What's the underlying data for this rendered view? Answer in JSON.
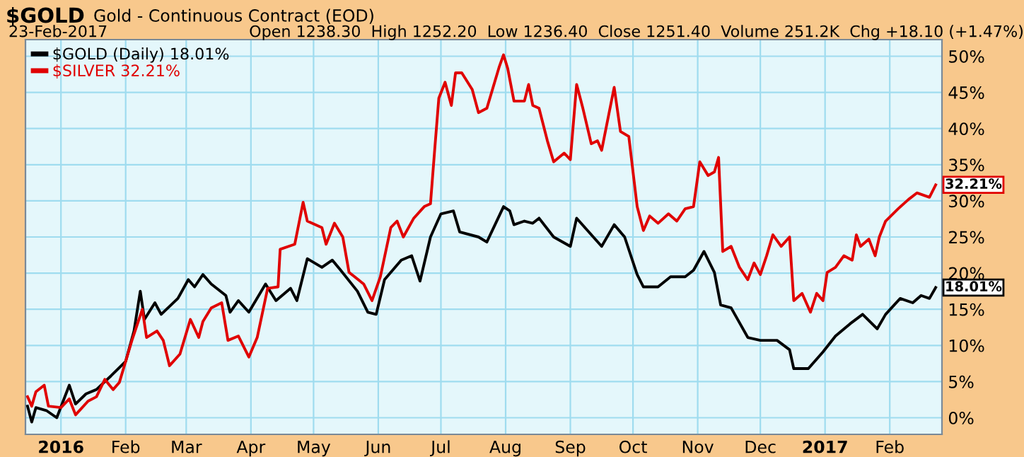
{
  "chart_data": {
    "type": "line",
    "title": "$GOLD",
    "subtitle": "Gold - Continuous Contract (EOD)",
    "annotations": [
      "23-Feb-2017",
      "Open 1238.30  High 1252.20  Low 1236.40  Close 1251.40  Volume 251.2K  Chg +18.10 (+1.47%)",
      {
        "text": "32.21%",
        "x": "2017-02-23",
        "y": 32.21
      },
      {
        "text": "18.01%",
        "x": "2017-02-23",
        "y": 18.01
      }
    ],
    "series": [
      {
        "name": "$GOLD (Daily) 18.01%",
        "color": "#000000",
        "x": [
          "2015-12-16",
          "2015-12-18",
          "2015-12-20",
          "2015-12-25",
          "2015-12-30",
          "2016-01-05",
          "2016-01-08",
          "2016-01-13",
          "2016-01-18",
          "2016-01-25",
          "2016-02-01",
          "2016-02-05",
          "2016-02-08",
          "2016-02-10",
          "2016-02-15",
          "2016-02-18",
          "2016-02-26",
          "2016-03-02",
          "2016-03-05",
          "2016-03-09",
          "2016-03-13",
          "2016-03-20",
          "2016-03-22",
          "2016-03-26",
          "2016-03-31",
          "2016-04-08",
          "2016-04-13",
          "2016-04-20",
          "2016-04-23",
          "2016-04-28",
          "2016-05-05",
          "2016-05-10",
          "2016-05-14",
          "2016-05-22",
          "2016-05-27",
          "2016-05-31",
          "2016-06-04",
          "2016-06-12",
          "2016-06-17",
          "2016-06-21",
          "2016-06-26",
          "2016-07-01",
          "2016-07-07",
          "2016-07-10",
          "2016-07-19",
          "2016-07-23",
          "2016-07-31",
          "2016-08-03",
          "2016-08-05",
          "2016-08-10",
          "2016-08-14",
          "2016-08-17",
          "2016-08-24",
          "2016-09-01",
          "2016-09-04",
          "2016-09-12",
          "2016-09-16",
          "2016-09-22",
          "2016-09-27",
          "2016-10-03",
          "2016-10-06",
          "2016-10-13",
          "2016-10-19",
          "2016-10-26",
          "2016-10-30",
          "2016-11-04",
          "2016-11-09",
          "2016-11-12",
          "2016-11-17",
          "2016-11-25",
          "2016-12-01",
          "2016-12-09",
          "2016-12-15",
          "2016-12-17",
          "2016-12-24",
          "2016-12-31",
          "2017-01-06",
          "2017-01-13",
          "2017-01-19",
          "2017-01-26",
          "2017-01-30",
          "2017-02-06",
          "2017-02-12",
          "2017-02-16",
          "2017-02-20",
          "2017-02-23"
        ],
        "values": [
          1.6,
          -0.6,
          1.4,
          1,
          0,
          4.5,
          1.9,
          3.3,
          3.9,
          5.8,
          7.8,
          12,
          17.5,
          13.6,
          15.9,
          14.3,
          16.5,
          19.1,
          18.1,
          19.8,
          18.5,
          16.9,
          14.6,
          16.2,
          14.6,
          18.5,
          16.2,
          17.9,
          16.2,
          22,
          20.8,
          21.8,
          20.4,
          17.5,
          14.6,
          14.3,
          19.1,
          21.8,
          22.4,
          18.9,
          25,
          28.2,
          28.6,
          25.7,
          25,
          24.3,
          29.2,
          28.6,
          26.7,
          27.2,
          26.9,
          27.6,
          25,
          23.7,
          27.6,
          25,
          23.7,
          26.7,
          25,
          19.8,
          18.1,
          18.1,
          19.5,
          19.5,
          20.4,
          23,
          20.1,
          15.6,
          15.2,
          11.1,
          10.7,
          10.7,
          9.4,
          6.8,
          6.8,
          9.1,
          11.3,
          13,
          14.3,
          12.3,
          14.3,
          16.5,
          15.9,
          16.9,
          16.5,
          18.01
        ]
      },
      {
        "name": "$SILVER 32.21%",
        "color": "#e00000",
        "x": [
          "2015-12-16",
          "2015-12-18",
          "2015-12-20",
          "2015-12-24",
          "2015-12-26",
          "2016-01-01",
          "2016-01-05",
          "2016-01-08",
          "2016-01-14",
          "2016-01-18",
          "2016-01-22",
          "2016-01-26",
          "2016-01-29",
          "2016-02-04",
          "2016-02-09",
          "2016-02-11",
          "2016-02-16",
          "2016-02-19",
          "2016-02-22",
          "2016-02-27",
          "2016-03-03",
          "2016-03-07",
          "2016-03-09",
          "2016-03-13",
          "2016-03-18",
          "2016-03-21",
          "2016-03-26",
          "2016-03-31",
          "2016-04-04",
          "2016-04-09",
          "2016-04-14",
          "2016-04-15",
          "2016-04-22",
          "2016-04-26",
          "2016-04-28",
          "2016-05-05",
          "2016-05-07",
          "2016-05-11",
          "2016-05-15",
          "2016-05-18",
          "2016-05-25",
          "2016-05-29",
          "2016-06-02",
          "2016-06-07",
          "2016-06-10",
          "2016-06-13",
          "2016-06-18",
          "2016-06-23",
          "2016-06-26",
          "2016-06-28",
          "2016-06-30",
          "2016-07-03",
          "2016-07-06",
          "2016-07-08",
          "2016-07-11",
          "2016-07-16",
          "2016-07-19",
          "2016-07-23",
          "2016-07-29",
          "2016-07-31",
          "2016-08-02",
          "2016-08-05",
          "2016-08-10",
          "2016-08-12",
          "2016-08-14",
          "2016-08-17",
          "2016-08-21",
          "2016-08-24",
          "2016-08-29",
          "2016-09-01",
          "2016-09-04",
          "2016-09-07",
          "2016-09-11",
          "2016-09-14",
          "2016-09-16",
          "2016-09-18",
          "2016-09-22",
          "2016-09-25",
          "2016-09-29",
          "2016-10-03",
          "2016-10-06",
          "2016-10-09",
          "2016-10-13",
          "2016-10-18",
          "2016-10-22",
          "2016-10-26",
          "2016-10-30",
          "2016-11-02",
          "2016-11-06",
          "2016-11-09",
          "2016-11-11",
          "2016-11-13",
          "2016-11-17",
          "2016-11-21",
          "2016-11-25",
          "2016-11-28",
          "2016-12-01",
          "2016-12-04",
          "2016-12-07",
          "2016-12-11",
          "2016-12-15",
          "2016-12-17",
          "2016-12-21",
          "2016-12-25",
          "2016-12-28",
          "2016-12-31",
          "2017-01-02",
          "2017-01-06",
          "2017-01-10",
          "2017-01-14",
          "2017-01-16",
          "2017-01-18",
          "2017-01-22",
          "2017-01-25",
          "2017-01-27",
          "2017-01-30",
          "2017-02-05",
          "2017-02-10",
          "2017-02-14",
          "2017-02-20",
          "2017-02-23"
        ],
        "values": [
          2.9,
          1.6,
          3.6,
          4.5,
          1.6,
          1.4,
          2.6,
          0.4,
          2.3,
          2.9,
          5.3,
          3.9,
          4.9,
          10.7,
          15,
          11.1,
          12,
          10.7,
          7.2,
          8.8,
          13.6,
          11.1,
          13.3,
          15.2,
          15.9,
          10.7,
          11.3,
          8.4,
          11.1,
          17.9,
          18.1,
          23.3,
          24,
          29.8,
          27.2,
          26.3,
          24,
          26.9,
          25,
          20.1,
          18.5,
          16.2,
          19.5,
          26.3,
          27.2,
          25,
          27.6,
          29.2,
          29.6,
          37,
          44.2,
          46.4,
          43.2,
          47.7,
          47.7,
          45.4,
          42.2,
          42.8,
          48.6,
          50.2,
          48.3,
          43.8,
          43.8,
          46.1,
          43.2,
          42.8,
          38.3,
          35.4,
          36.6,
          35.7,
          46.1,
          42.8,
          37.9,
          38.3,
          37,
          39.9,
          45.7,
          39.6,
          38.9,
          29.2,
          25.9,
          27.9,
          26.9,
          28.2,
          27.2,
          28.9,
          29.2,
          35.4,
          33.5,
          34,
          36,
          23,
          23.7,
          20.8,
          19.1,
          21.4,
          19.8,
          22.4,
          25.3,
          23.7,
          25,
          16.2,
          17.2,
          14.6,
          17.2,
          16.2,
          20.1,
          20.8,
          22.4,
          21.8,
          25.3,
          23.7,
          24.7,
          22.4,
          25,
          27.2,
          28.9,
          30.2,
          31.1,
          30.5,
          32.21
        ]
      }
    ],
    "xlim": [
      "2015-12-15",
      "2017-02-26"
    ],
    "xticks": [
      {
        "value": "2016-01-01",
        "label": "2016"
      },
      {
        "value": "2016-02-01",
        "label": "Feb"
      },
      {
        "value": "2016-03-01",
        "label": "Mar"
      },
      {
        "value": "2016-04-01",
        "label": "Apr"
      },
      {
        "value": "2016-05-01",
        "label": "May"
      },
      {
        "value": "2016-06-01",
        "label": "Jun"
      },
      {
        "value": "2016-07-01",
        "label": "Jul"
      },
      {
        "value": "2016-08-01",
        "label": "Aug"
      },
      {
        "value": "2016-09-01",
        "label": "Sep"
      },
      {
        "value": "2016-10-01",
        "label": "Oct"
      },
      {
        "value": "2016-11-01",
        "label": "Nov"
      },
      {
        "value": "2016-12-01",
        "label": "Dec"
      },
      {
        "value": "2017-01-01",
        "label": "2017"
      },
      {
        "value": "2017-02-01",
        "label": "Feb"
      }
    ],
    "ylim": [
      -2.3,
      52.3
    ],
    "yticks": [
      {
        "value": 0,
        "label": "0%"
      },
      {
        "value": 5,
        "label": "5%"
      },
      {
        "value": 10,
        "label": "10%"
      },
      {
        "value": 15,
        "label": "15%"
      },
      {
        "value": 20,
        "label": "20%"
      },
      {
        "value": 25,
        "label": "25%"
      },
      {
        "value": 30,
        "label": "30%"
      },
      {
        "value": 35,
        "label": "35%"
      },
      {
        "value": 40,
        "label": "40%"
      },
      {
        "value": 45,
        "label": "45%"
      },
      {
        "value": 50,
        "label": "50%"
      }
    ],
    "grid": true,
    "legend": "top left",
    "marker": "none",
    "line_style": "solid"
  }
}
